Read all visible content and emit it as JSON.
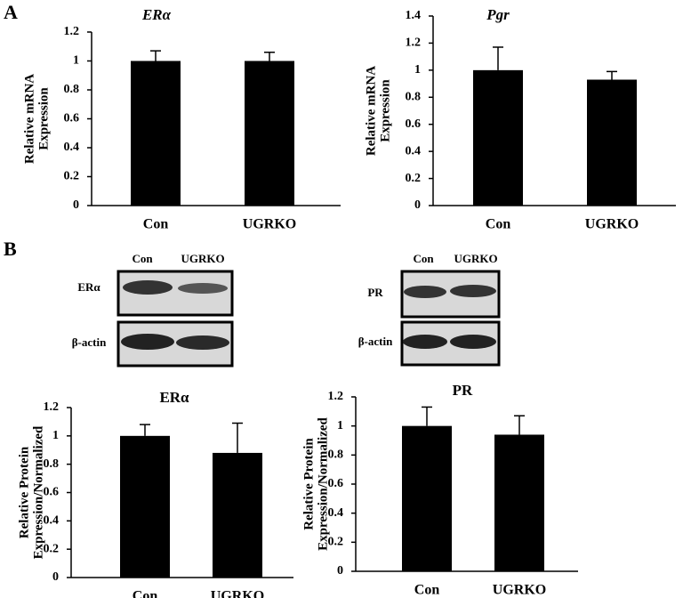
{
  "panels": {
    "a": "A",
    "b": "B"
  },
  "blots": [
    {
      "lanes": [
        "Con",
        "UGRKO"
      ],
      "rows": [
        "ERα",
        "β-actin"
      ]
    },
    {
      "lanes": [
        "Con",
        "UGRKO"
      ],
      "rows": [
        "PR",
        "β-actin"
      ]
    }
  ],
  "chart_data": [
    {
      "type": "bar",
      "title": "ERα",
      "ylabel": [
        "Relative mRNA",
        "Expression"
      ],
      "categories": [
        "Con",
        "UGRKO"
      ],
      "values": [
        1.0,
        1.0
      ],
      "errors": [
        0.07,
        0.06
      ],
      "color": "#000000",
      "ylim": [
        0,
        1.2
      ],
      "yticks": [
        0,
        0.2,
        0.4,
        0.6,
        0.8,
        1,
        1.2
      ]
    },
    {
      "type": "bar",
      "title": "Pgr",
      "ylabel": [
        "Relative mRNA",
        "Expression"
      ],
      "categories": [
        "Con",
        "UGRKO"
      ],
      "values": [
        1.0,
        0.93
      ],
      "errors": [
        0.17,
        0.06
      ],
      "color": "#000000",
      "ylim": [
        0,
        1.4
      ],
      "yticks": [
        0,
        0.2,
        0.4,
        0.6,
        0.8,
        1,
        1.2,
        1.4
      ]
    },
    {
      "type": "bar",
      "title": "ERα",
      "ylabel": [
        "Relative Protein",
        "Expression/Normalized"
      ],
      "categories": [
        "Con",
        "UGRKO"
      ],
      "values": [
        1.0,
        0.88
      ],
      "errors": [
        0.08,
        0.21
      ],
      "color": "#000000",
      "ylim": [
        0,
        1.2
      ],
      "yticks": [
        0,
        0.2,
        0.4,
        0.6,
        0.8,
        1,
        1.2
      ]
    },
    {
      "type": "bar",
      "title": "PR",
      "ylabel": [
        "Relative Protein",
        "Expression/Normalized"
      ],
      "categories": [
        "Con",
        "UGRKO"
      ],
      "values": [
        1.0,
        0.94
      ],
      "errors": [
        0.13,
        0.13
      ],
      "color": "#000000",
      "ylim": [
        0,
        1.2
      ],
      "yticks": [
        0,
        0.2,
        0.4,
        0.6,
        0.8,
        1,
        1.2
      ]
    }
  ]
}
